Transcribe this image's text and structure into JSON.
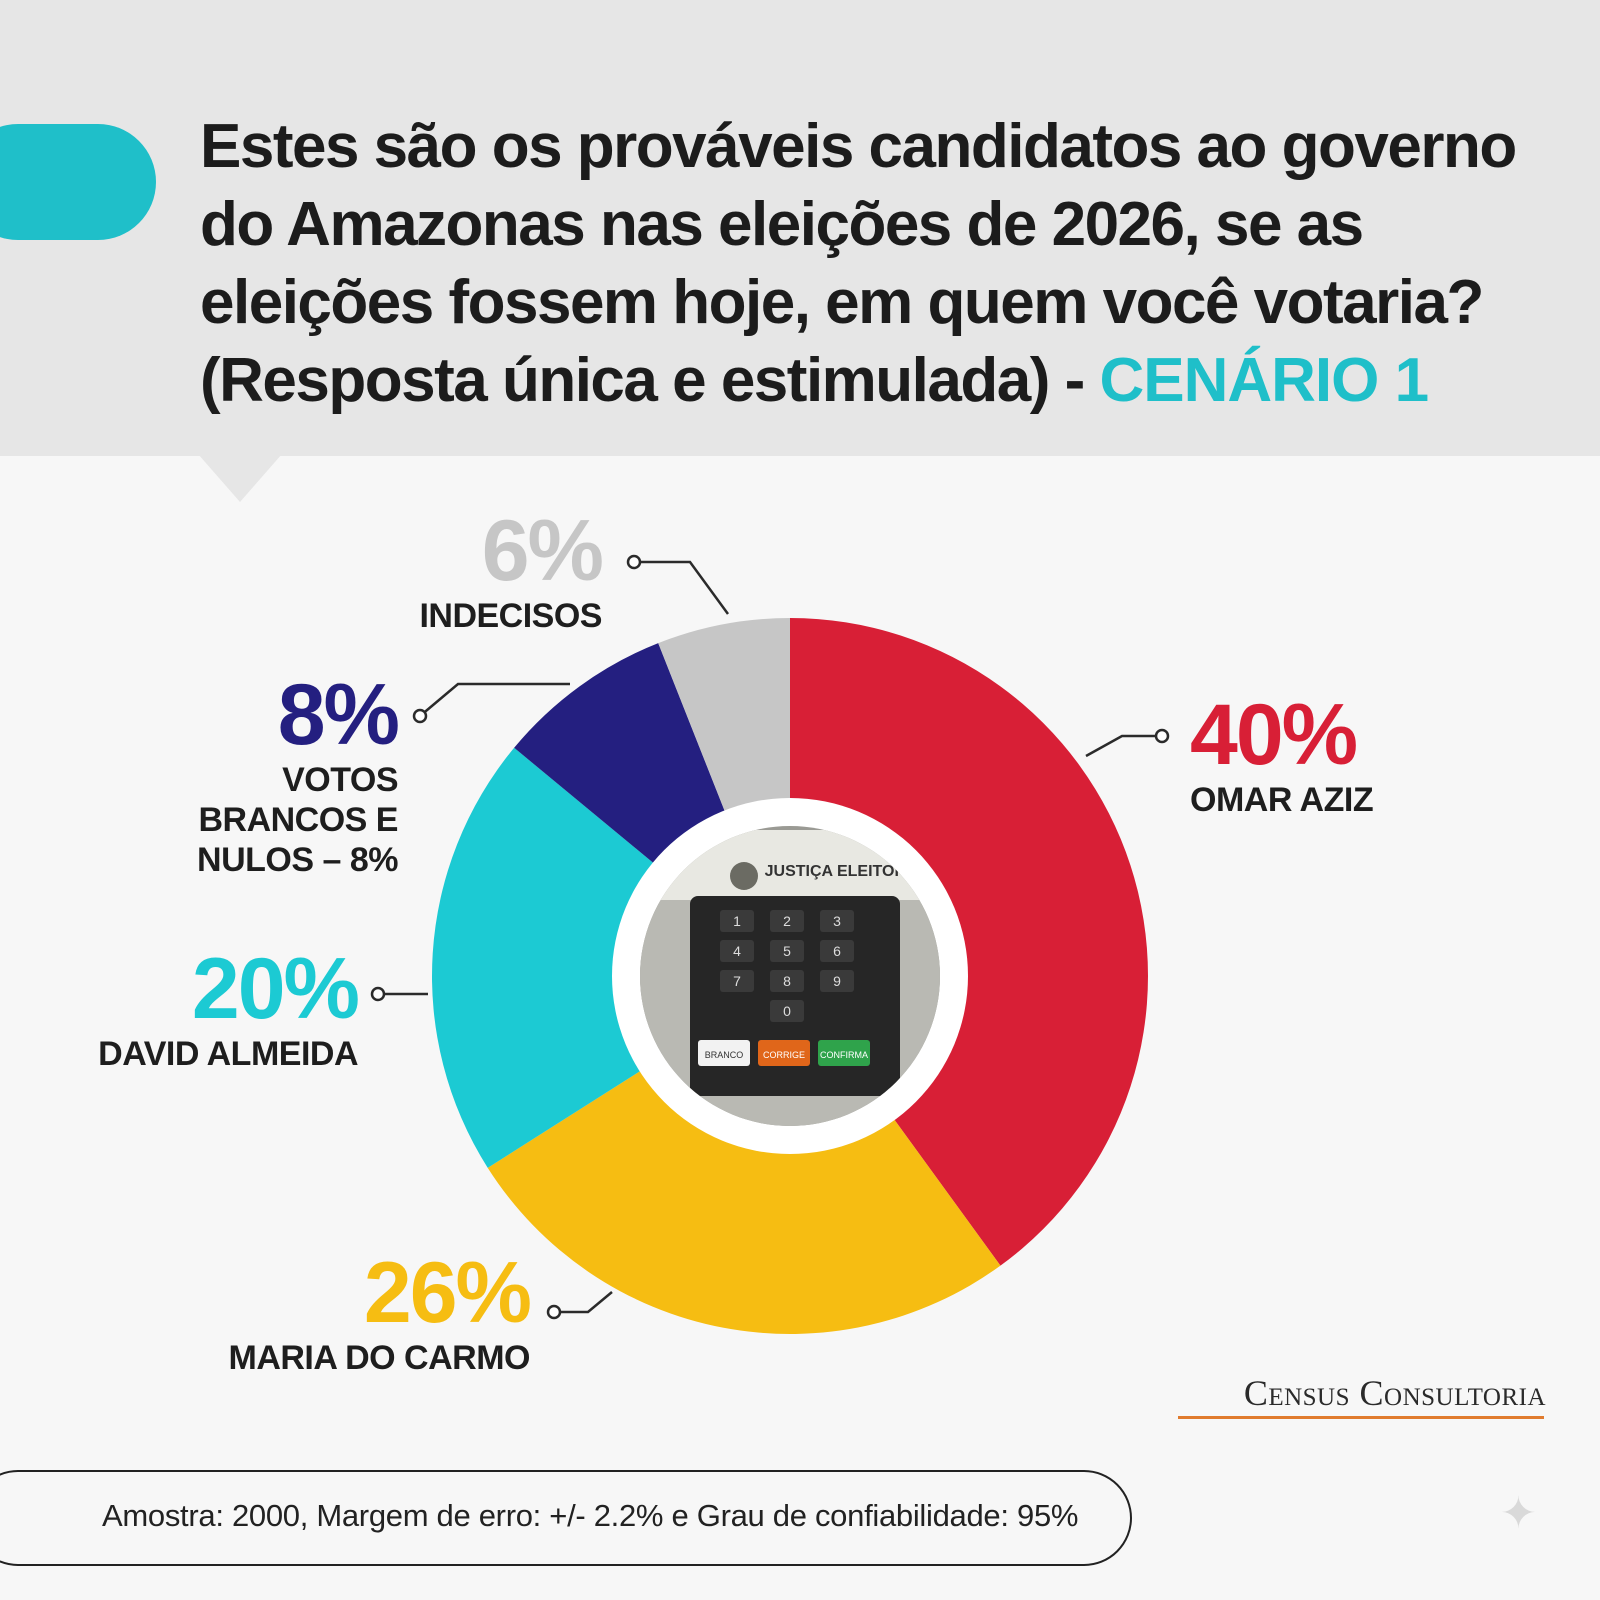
{
  "header": {
    "title_main": "Estes são os prováveis candidatos ao governo do Amazonas nas eleições de 2026, se as eleições fossem hoje, em quem você votaria? (Resposta única e estimulada) - ",
    "title_highlight": "CENÁRIO 1"
  },
  "colors": {
    "accent": "#1fbfc9",
    "omar": "#d81f36",
    "maria": "#f6bd12",
    "david": "#1ccad3",
    "brancos": "#241f80",
    "indecisos": "#c6c6c6"
  },
  "chart_data": {
    "type": "pie",
    "donut": true,
    "slices": [
      {
        "label": "OMAR AZIZ",
        "pct_text": "40%",
        "value": 40,
        "color": "#d81f36"
      },
      {
        "label": "MARIA DO CARMO",
        "pct_text": "26%",
        "value": 26,
        "color": "#f6bd12"
      },
      {
        "label": "DAVID ALMEIDA",
        "pct_text": "20%",
        "value": 20,
        "color": "#1ccad3"
      },
      {
        "label": "VOTOS BRANCOS E NULOS – 8%",
        "pct_text": "8%",
        "value": 8,
        "color": "#241f80"
      },
      {
        "label": "INDECISOS",
        "pct_text": "6%",
        "value": 6,
        "color": "#c6c6c6"
      }
    ]
  },
  "center_image": {
    "icon": "voting-machine-icon",
    "printed_text": "JUSTIÇA ELEITORAL",
    "keys": [
      "1",
      "2",
      "3",
      "4",
      "5",
      "6",
      "7",
      "8",
      "9",
      "0"
    ],
    "buttons": [
      "BRANCO",
      "CORRIGE",
      "CONFIRMA"
    ]
  },
  "brand": "Census Consultoria",
  "footer": "Amostra: 2000, Margem de erro: +/- 2.2% e Grau de confiabilidade: 95%"
}
